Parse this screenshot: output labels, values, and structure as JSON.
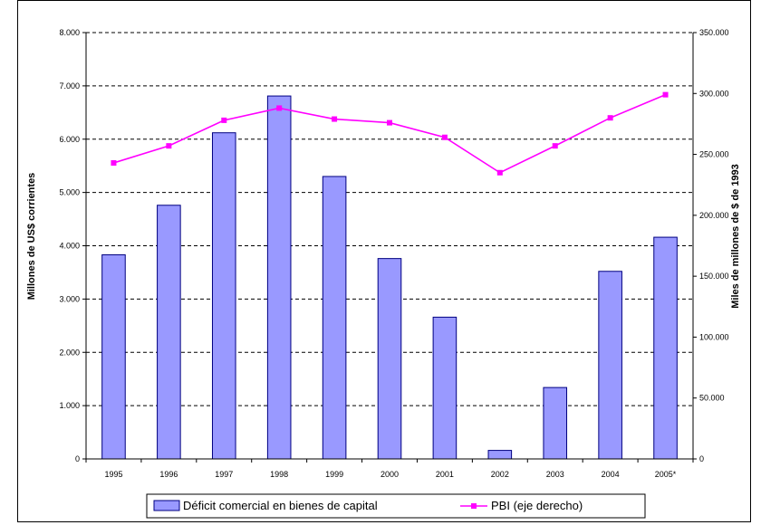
{
  "chart_data": {
    "type": "bar",
    "categories": [
      "1995",
      "1996",
      "1997",
      "1998",
      "1999",
      "2000",
      "2001",
      "2002",
      "2003",
      "2004",
      "2005*"
    ],
    "series": [
      {
        "name": "Déficit comercial en bienes de capital",
        "axis": "left",
        "type": "bar",
        "values": [
          3830,
          4760,
          6120,
          6810,
          5300,
          3760,
          2660,
          160,
          1340,
          3520,
          4160
        ],
        "color": "#9999ff"
      },
      {
        "name": "PBI (eje derecho)",
        "axis": "right",
        "type": "line",
        "values": [
          243000,
          257000,
          278000,
          288000,
          279000,
          276000,
          264000,
          235000,
          257000,
          280000,
          299000
        ],
        "color": "#ff00ff"
      }
    ],
    "ylabel_left": "Millones de US$ corrientes",
    "ylabel_right": "Miles de millones de $ de 1993",
    "ylim_left": [
      0,
      8000
    ],
    "ylim_right": [
      0,
      350000
    ],
    "yticks_left": [
      "0",
      "1.000",
      "2.000",
      "3.000",
      "4.000",
      "5.000",
      "6.000",
      "7.000",
      "8.000"
    ],
    "yticks_right": [
      "0",
      "50.000",
      "100.000",
      "150.000",
      "200.000",
      "250.000",
      "300.000",
      "350.000"
    ],
    "grid": "horizontal dashed",
    "legend_position": "bottom"
  }
}
